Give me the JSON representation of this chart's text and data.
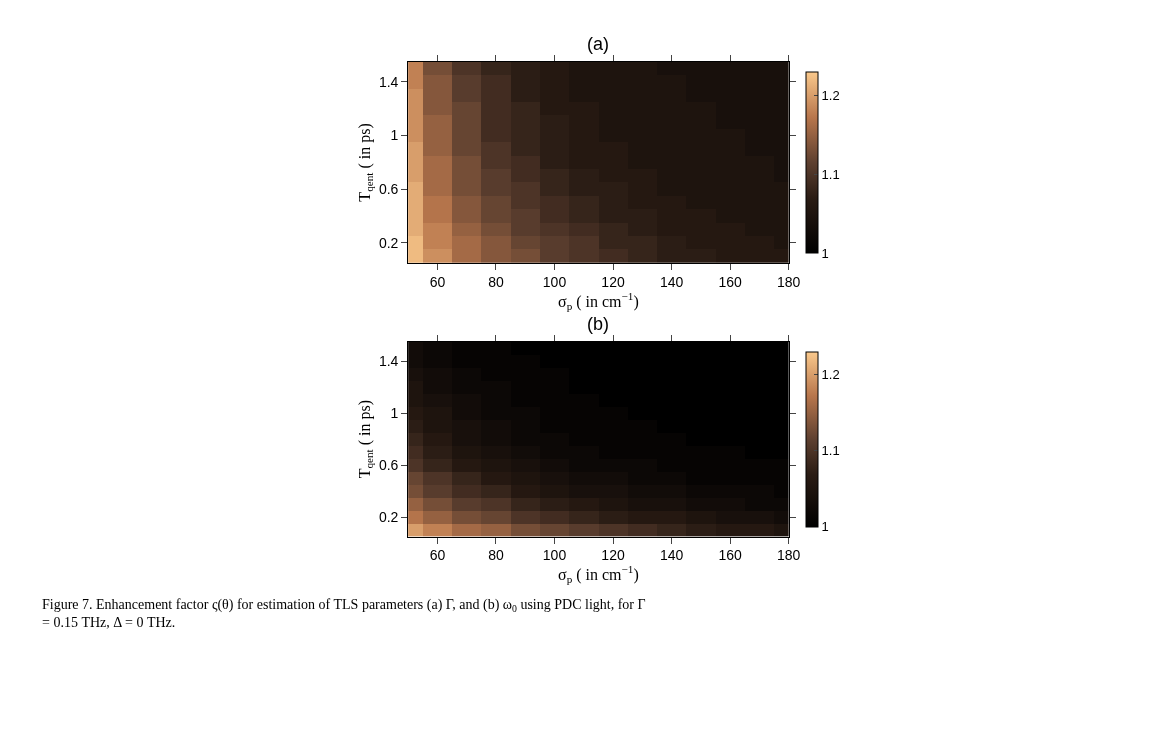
{
  "chart_data": [
    {
      "type": "heatmap",
      "title": "(a)",
      "xlabel": "σ$_{p}$ ( in cm$^{−1}$)",
      "ylabel": "T$_{qent}$ ( in ps)",
      "x": [
        50,
        60,
        70,
        80,
        90,
        100,
        110,
        120,
        130,
        140,
        150,
        160,
        170,
        180
      ],
      "y_categories": [
        null,
        "1.4",
        null,
        null,
        null,
        "1",
        null,
        null,
        null,
        "0.6",
        null,
        null,
        null,
        "0.2",
        null
      ],
      "cells": [
        [
          1.18,
          1.13,
          1.1,
          1.08,
          1.07,
          1.06,
          1.05,
          1.05,
          1.05,
          1.04,
          1.04,
          1.04,
          1.04,
          1.04
        ],
        [
          1.18,
          1.14,
          1.11,
          1.09,
          1.07,
          1.06,
          1.05,
          1.05,
          1.05,
          1.05,
          1.04,
          1.04,
          1.04,
          1.04
        ],
        [
          1.19,
          1.14,
          1.11,
          1.09,
          1.07,
          1.06,
          1.05,
          1.05,
          1.05,
          1.05,
          1.04,
          1.04,
          1.04,
          1.04
        ],
        [
          1.19,
          1.14,
          1.12,
          1.09,
          1.08,
          1.06,
          1.06,
          1.05,
          1.05,
          1.05,
          1.05,
          1.04,
          1.04,
          1.04
        ],
        [
          1.19,
          1.15,
          1.12,
          1.09,
          1.08,
          1.07,
          1.06,
          1.05,
          1.05,
          1.05,
          1.05,
          1.04,
          1.04,
          1.04
        ],
        [
          1.19,
          1.15,
          1.12,
          1.09,
          1.08,
          1.07,
          1.06,
          1.05,
          1.05,
          1.05,
          1.05,
          1.05,
          1.04,
          1.04
        ],
        [
          1.2,
          1.15,
          1.12,
          1.1,
          1.08,
          1.07,
          1.06,
          1.06,
          1.05,
          1.05,
          1.05,
          1.05,
          1.04,
          1.04
        ],
        [
          1.2,
          1.16,
          1.13,
          1.1,
          1.09,
          1.07,
          1.06,
          1.06,
          1.05,
          1.05,
          1.05,
          1.05,
          1.05,
          1.04
        ],
        [
          1.2,
          1.16,
          1.13,
          1.11,
          1.09,
          1.08,
          1.07,
          1.06,
          1.06,
          1.05,
          1.05,
          1.05,
          1.05,
          1.04
        ],
        [
          1.21,
          1.16,
          1.13,
          1.11,
          1.1,
          1.08,
          1.07,
          1.07,
          1.06,
          1.05,
          1.05,
          1.05,
          1.05,
          1.05
        ],
        [
          1.21,
          1.17,
          1.14,
          1.12,
          1.1,
          1.09,
          1.08,
          1.07,
          1.06,
          1.06,
          1.05,
          1.05,
          1.05,
          1.05
        ],
        [
          1.21,
          1.17,
          1.14,
          1.12,
          1.11,
          1.09,
          1.08,
          1.07,
          1.07,
          1.06,
          1.06,
          1.05,
          1.05,
          1.05
        ],
        [
          1.21,
          1.18,
          1.15,
          1.13,
          1.11,
          1.1,
          1.09,
          1.08,
          1.07,
          1.06,
          1.06,
          1.06,
          1.05,
          1.05
        ],
        [
          1.22,
          1.18,
          1.16,
          1.14,
          1.12,
          1.11,
          1.1,
          1.08,
          1.08,
          1.07,
          1.06,
          1.06,
          1.06,
          1.05
        ],
        [
          1.22,
          1.19,
          1.16,
          1.14,
          1.13,
          1.11,
          1.1,
          1.09,
          1.08,
          1.07,
          1.07,
          1.06,
          1.06,
          1.06
        ]
      ],
      "xlim": [
        50,
        180
      ],
      "xticks": [
        60,
        80,
        100,
        120,
        140,
        160,
        180
      ],
      "clim": [
        1,
        1.23
      ],
      "cticks": [
        1,
        1.1,
        1.2
      ]
    },
    {
      "type": "heatmap",
      "title": "(b)",
      "xlabel": "σ$_{p}$ ( in cm$^{−1}$)",
      "ylabel": "T$_{qent}$ ( in ps)",
      "x": [
        50,
        60,
        70,
        80,
        90,
        100,
        110,
        120,
        130,
        140,
        150,
        160,
        170,
        180
      ],
      "y_categories": [
        null,
        "1.4",
        null,
        null,
        null,
        "1",
        null,
        null,
        null,
        "0.6",
        null,
        null,
        null,
        "0.2",
        null
      ],
      "cells": [
        [
          1.03,
          1.02,
          1.01,
          1.01,
          1.0,
          1.0,
          1.0,
          1.0,
          1.0,
          1.0,
          1.0,
          1.0,
          1.0,
          1.0
        ],
        [
          1.03,
          1.02,
          1.01,
          1.01,
          1.01,
          1.0,
          1.0,
          1.0,
          1.0,
          1.0,
          1.0,
          1.0,
          1.0,
          1.0
        ],
        [
          1.04,
          1.03,
          1.02,
          1.01,
          1.01,
          1.01,
          1.0,
          1.0,
          1.0,
          1.0,
          1.0,
          1.0,
          1.0,
          1.0
        ],
        [
          1.05,
          1.03,
          1.02,
          1.02,
          1.01,
          1.01,
          1.0,
          1.0,
          1.0,
          1.0,
          1.0,
          1.0,
          1.0,
          1.0
        ],
        [
          1.05,
          1.04,
          1.03,
          1.02,
          1.01,
          1.01,
          1.01,
          1.0,
          1.0,
          1.0,
          1.0,
          1.0,
          1.0,
          1.0
        ],
        [
          1.06,
          1.05,
          1.03,
          1.02,
          1.02,
          1.01,
          1.01,
          1.01,
          1.0,
          1.0,
          1.0,
          1.0,
          1.0,
          1.0
        ],
        [
          1.07,
          1.05,
          1.04,
          1.03,
          1.02,
          1.01,
          1.01,
          1.01,
          1.01,
          1.0,
          1.0,
          1.0,
          1.0,
          1.0
        ],
        [
          1.08,
          1.06,
          1.04,
          1.03,
          1.02,
          1.02,
          1.01,
          1.01,
          1.01,
          1.01,
          1.0,
          1.0,
          1.0,
          1.0
        ],
        [
          1.09,
          1.07,
          1.05,
          1.04,
          1.03,
          1.02,
          1.02,
          1.01,
          1.01,
          1.01,
          1.01,
          1.01,
          1.0,
          1.0
        ],
        [
          1.1,
          1.08,
          1.06,
          1.05,
          1.04,
          1.03,
          1.02,
          1.02,
          1.02,
          1.01,
          1.01,
          1.01,
          1.01,
          1.01
        ],
        [
          1.12,
          1.1,
          1.08,
          1.06,
          1.05,
          1.04,
          1.03,
          1.03,
          1.02,
          1.02,
          1.01,
          1.01,
          1.01,
          1.01
        ],
        [
          1.13,
          1.11,
          1.09,
          1.08,
          1.06,
          1.05,
          1.04,
          1.04,
          1.03,
          1.03,
          1.02,
          1.02,
          1.02,
          1.01
        ],
        [
          1.15,
          1.13,
          1.11,
          1.1,
          1.08,
          1.07,
          1.06,
          1.05,
          1.04,
          1.04,
          1.03,
          1.03,
          1.02,
          1.02
        ],
        [
          1.17,
          1.15,
          1.13,
          1.12,
          1.1,
          1.09,
          1.08,
          1.07,
          1.06,
          1.06,
          1.05,
          1.04,
          1.04,
          1.03
        ],
        [
          1.2,
          1.18,
          1.16,
          1.15,
          1.13,
          1.12,
          1.11,
          1.1,
          1.09,
          1.08,
          1.07,
          1.06,
          1.06,
          1.05
        ]
      ],
      "xlim": [
        50,
        180
      ],
      "xticks": [
        60,
        80,
        100,
        120,
        140,
        160,
        180
      ],
      "clim": [
        1,
        1.23
      ],
      "cticks": [
        1,
        1.1,
        1.2
      ],
      "annotations": [
        "Figure 7. Enhancement factor ς(θ) for estimation of TLS parameters (a) Γ, and (b) ω$_{0}$ using PDC light, for Γ = 0.15 THz, Δ = 0 THz."
      ]
    }
  ]
}
